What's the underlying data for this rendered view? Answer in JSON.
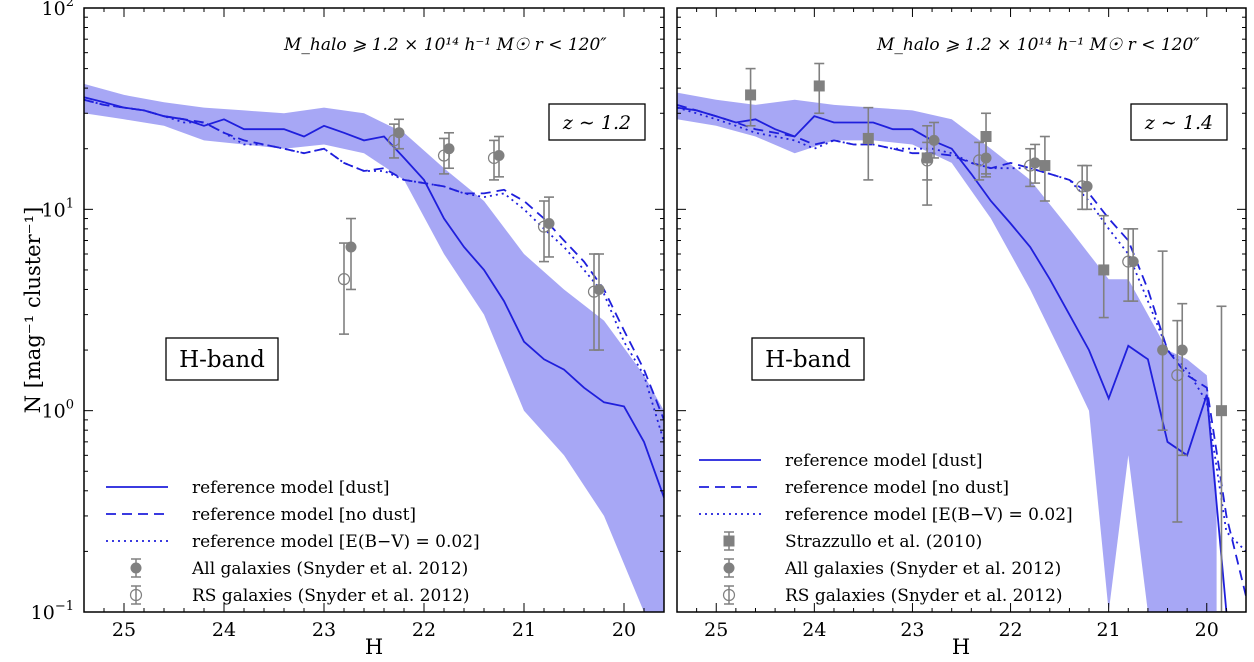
{
  "chart_data": [
    {
      "type": "line",
      "panel": "left",
      "xlabel": "H",
      "ylabel": "N [mag⁻¹ cluster⁻¹]",
      "xlim": [
        25.4,
        19.6
      ],
      "ylim": [
        0.1,
        100
      ],
      "yscale": "log",
      "x_ticks": [
        25,
        24,
        23,
        22,
        21,
        20
      ],
      "y_ticks": [
        {
          "value": 0.1,
          "base": "10",
          "exp": "−1"
        },
        {
          "value": 1,
          "base": "10",
          "exp": "0"
        },
        {
          "value": 10,
          "base": "10",
          "exp": "1"
        },
        {
          "value": 100,
          "base": "10",
          "exp": "2"
        }
      ],
      "annotation": "M_halo ⩾ 1.2 × 10¹⁴ h⁻¹ M☉     r < 120″",
      "redshift_label": "z ∼ 1.2",
      "band_label": "H-band",
      "legend_position": "lower-left",
      "legend": [
        {
          "label": "reference model [dust]",
          "style": "solid"
        },
        {
          "label": "reference model [no dust]",
          "style": "dashed"
        },
        {
          "label": "reference model [E(B−V) = 0.02]",
          "style": "dotted"
        },
        {
          "label": "All galaxies (Snyder et al. 2012)",
          "style": "filled-circle"
        },
        {
          "label": "RS galaxies (Snyder et al. 2012)",
          "style": "open-circle"
        }
      ],
      "series": [
        {
          "name": "reference model [dust]",
          "style": "solid",
          "x": [
            25.4,
            25.2,
            25,
            24.8,
            24.6,
            24.4,
            24.2,
            24,
            23.8,
            23.6,
            23.4,
            23.2,
            23,
            22.8,
            22.6,
            22.4,
            22.2,
            22,
            21.8,
            21.6,
            21.4,
            21.2,
            21,
            20.8,
            20.6,
            20.4,
            20.2,
            20,
            19.8,
            19.6
          ],
          "y": [
            36,
            34,
            32,
            31,
            29,
            28,
            26,
            28,
            25,
            25,
            25,
            23,
            26,
            24,
            22,
            23,
            18,
            14,
            9,
            6.5,
            5,
            3.5,
            2.2,
            1.8,
            1.6,
            1.3,
            1.1,
            1.05,
            0.7,
            0.37
          ]
        },
        {
          "name": "reference model [no dust]",
          "style": "dashed",
          "x": [
            25.4,
            25.2,
            25,
            24.8,
            24.6,
            24.4,
            24.2,
            24,
            23.8,
            23.6,
            23.4,
            23.2,
            23,
            22.8,
            22.6,
            22.4,
            22.2,
            22,
            21.8,
            21.6,
            21.4,
            21.2,
            21,
            20.8,
            20.6,
            20.4,
            20.2,
            20,
            19.8,
            19.6
          ],
          "y": [
            35,
            33,
            32,
            31,
            29,
            28,
            27,
            24,
            22,
            21,
            20,
            19,
            20,
            17,
            15.5,
            16,
            14,
            13.5,
            13,
            12,
            12,
            12.5,
            11,
            9,
            7,
            5.5,
            4,
            2.5,
            1.6,
            0.9
          ]
        },
        {
          "name": "reference model [E(B−V) = 0.02]",
          "style": "dotted",
          "x": [
            25.4,
            25.2,
            25,
            24.8,
            24.6,
            24.4,
            24.2,
            24,
            23.8,
            23.6,
            23.4,
            23.2,
            23,
            22.8,
            22.6,
            22.4,
            22.2,
            22,
            21.8,
            21.6,
            21.4,
            21.2,
            21,
            20.8,
            20.6,
            20.4,
            20.2,
            20,
            19.8,
            19.6
          ],
          "y": [
            35,
            33,
            32,
            31,
            29,
            27,
            27,
            24,
            21,
            21,
            20,
            19,
            20,
            17,
            15.5,
            15.5,
            14,
            13.5,
            13,
            12,
            11.5,
            12,
            10,
            8,
            6.5,
            5,
            3.8,
            2.2,
            1.5,
            0.7
          ]
        },
        {
          "name": "model band (dust)",
          "style": "band",
          "x": [
            25.4,
            25,
            24.6,
            24.2,
            23.8,
            23.4,
            23,
            22.6,
            22.2,
            21.8,
            21.4,
            21,
            20.6,
            20.2,
            19.8,
            19.6
          ],
          "y_low": [
            30,
            28,
            26,
            22,
            21,
            20,
            21,
            19,
            14,
            6,
            3,
            1,
            0.6,
            0.3,
            0.1,
            0.1
          ],
          "y_high": [
            42,
            37,
            34,
            32,
            31,
            30,
            32,
            30,
            24,
            16,
            11,
            6,
            4,
            2.8,
            1.5,
            1
          ]
        }
      ],
      "points": [
        {
          "name": "All galaxies (Snyder et al. 2012)",
          "marker": "filled-circle",
          "data": [
            {
              "x": 22.73,
              "y": 6.5,
              "lo": 4,
              "hi": 9
            },
            {
              "x": 22.25,
              "y": 24,
              "lo": 20,
              "hi": 28
            },
            {
              "x": 21.75,
              "y": 20,
              "lo": 16,
              "hi": 24
            },
            {
              "x": 21.25,
              "y": 18.5,
              "lo": 14.5,
              "hi": 23
            },
            {
              "x": 20.75,
              "y": 8.5,
              "lo": 5.8,
              "hi": 11.5
            },
            {
              "x": 20.25,
              "y": 4,
              "lo": 2,
              "hi": 6
            }
          ]
        },
        {
          "name": "RS galaxies (Snyder et al. 2012)",
          "marker": "open-circle",
          "data": [
            {
              "x": 22.8,
              "y": 4.5,
              "lo": 2.4,
              "hi": 6.8
            },
            {
              "x": 22.3,
              "y": 22,
              "lo": 18,
              "hi": 26.5
            },
            {
              "x": 21.8,
              "y": 18.5,
              "lo": 15,
              "hi": 22.5
            },
            {
              "x": 21.3,
              "y": 18,
              "lo": 14,
              "hi": 22
            },
            {
              "x": 20.8,
              "y": 8.2,
              "lo": 5.5,
              "hi": 11
            },
            {
              "x": 20.3,
              "y": 3.9,
              "lo": 2,
              "hi": 6
            }
          ]
        }
      ]
    },
    {
      "type": "line",
      "panel": "right",
      "xlabel": "H",
      "xlim": [
        25.4,
        19.6
      ],
      "ylim": [
        0.1,
        100
      ],
      "yscale": "log",
      "x_ticks": [
        25,
        24,
        23,
        22,
        21,
        20
      ],
      "annotation": "M_halo ⩾ 1.2 × 10¹⁴ h⁻¹ M☉     r < 120″",
      "redshift_label": "z ∼ 1.4",
      "band_label": "H-band",
      "legend_position": "lower-left",
      "legend": [
        {
          "label": "reference model [dust]",
          "style": "solid"
        },
        {
          "label": "reference model [no dust]",
          "style": "dashed"
        },
        {
          "label": "reference model [E(B−V) = 0.02]",
          "style": "dotted"
        },
        {
          "label": "Strazzullo et al. (2010)",
          "style": "filled-square"
        },
        {
          "label": "All galaxies (Snyder et al. 2012)",
          "style": "filled-circle"
        },
        {
          "label": "RS galaxies (Snyder et al. 2012)",
          "style": "open-circle"
        }
      ],
      "series": [
        {
          "name": "reference model [dust]",
          "style": "solid",
          "x": [
            25.4,
            25.2,
            25,
            24.8,
            24.6,
            24.4,
            24.2,
            24,
            23.8,
            23.6,
            23.4,
            23.2,
            23,
            22.8,
            22.6,
            22.4,
            22.2,
            22,
            21.8,
            21.6,
            21.4,
            21.2,
            21,
            20.8,
            20.6,
            20.4,
            20.2,
            20,
            19.8
          ],
          "y": [
            32,
            31,
            29,
            27,
            28,
            25,
            23,
            29,
            27,
            27,
            27,
            25,
            25,
            22,
            20,
            15,
            11,
            8.5,
            6.5,
            4.5,
            3,
            2,
            1.15,
            2.1,
            1.8,
            0.7,
            0.6,
            1.2,
            0.1
          ]
        },
        {
          "name": "reference model [no dust]",
          "style": "dashed",
          "x": [
            25.4,
            25.2,
            25,
            24.8,
            24.6,
            24.4,
            24.2,
            24,
            23.8,
            23.6,
            23.4,
            23.2,
            23,
            22.8,
            22.6,
            22.4,
            22.2,
            22,
            21.8,
            21.6,
            21.4,
            21.2,
            21,
            20.8,
            20.6,
            20.4,
            20.2,
            20,
            19.8,
            19.6
          ],
          "y": [
            33,
            31,
            29,
            27,
            25,
            24,
            23,
            21,
            22,
            21,
            21,
            20,
            19,
            19,
            18.5,
            17,
            16,
            17,
            16,
            15,
            14,
            12,
            9,
            7,
            4,
            2,
            1.5,
            1.3,
            0.3,
            0.12
          ]
        },
        {
          "name": "reference model [E(B−V) = 0.02]",
          "style": "dotted",
          "x": [
            25.4,
            25.2,
            25,
            24.8,
            24.6,
            24.4,
            24.2,
            24,
            23.8,
            23.6,
            23.4,
            23.2,
            23,
            22.8,
            22.6,
            22.4,
            22.2,
            22,
            21.8,
            21.6,
            21.4,
            21.2,
            21,
            20.8,
            20.6,
            20.4,
            20.2,
            20,
            19.8,
            19.6
          ],
          "y": [
            32,
            30,
            28,
            26,
            24,
            23,
            22,
            20,
            22,
            21,
            21,
            20,
            20,
            20,
            19,
            17,
            16,
            16,
            16,
            15,
            14,
            11,
            8,
            6,
            3.5,
            2,
            1.6,
            1.1,
            0.25,
            0.2
          ]
        },
        {
          "name": "model band (dust)",
          "style": "band",
          "x": [
            25.4,
            25,
            24.6,
            24.2,
            23.8,
            23.4,
            23,
            22.6,
            22.2,
            21.8,
            21.4,
            21.2,
            21,
            20.8,
            20.6,
            20.4,
            20.2,
            20,
            19.9
          ],
          "y_low": [
            28,
            26,
            23,
            19,
            22,
            22,
            21,
            17,
            9,
            4,
            1.6,
            1,
            0.1,
            0.6,
            0.1,
            0.1,
            0.1,
            0.1,
            0.1
          ],
          "y_high": [
            38,
            35,
            33,
            35,
            33,
            32,
            31,
            28,
            20,
            14,
            8,
            6,
            4.5,
            4.5,
            3,
            2,
            1.8,
            1.5,
            0.4
          ]
        }
      ],
      "points": [
        {
          "name": "Strazzullo et al. (2010)",
          "marker": "filled-square",
          "data": [
            {
              "x": 24.65,
              "y": 37,
              "lo": 26,
              "hi": 50
            },
            {
              "x": 23.95,
              "y": 41,
              "lo": 30,
              "hi": 53
            },
            {
              "x": 23.45,
              "y": 22.5,
              "lo": 14,
              "hi": 32
            },
            {
              "x": 22.85,
              "y": 18,
              "lo": 10.5,
              "hi": 26
            },
            {
              "x": 22.25,
              "y": 23,
              "lo": 15,
              "hi": 30
            },
            {
              "x": 21.65,
              "y": 16.5,
              "lo": 11,
              "hi": 23
            },
            {
              "x": 21.05,
              "y": 5,
              "lo": 2.9,
              "hi": 9.3
            },
            {
              "x": 19.85,
              "y": 1,
              "lo": 0.1,
              "hi": 3.3
            }
          ]
        },
        {
          "name": "All galaxies (Snyder et al. 2012)",
          "marker": "filled-circle",
          "data": [
            {
              "x": 22.78,
              "y": 22,
              "lo": 18,
              "hi": 27
            },
            {
              "x": 22.25,
              "y": 18,
              "lo": 14.5,
              "hi": 22
            },
            {
              "x": 21.75,
              "y": 17,
              "lo": 13.5,
              "hi": 21
            },
            {
              "x": 21.22,
              "y": 13,
              "lo": 10,
              "hi": 16.5
            },
            {
              "x": 20.75,
              "y": 5.5,
              "lo": 3.5,
              "hi": 8
            },
            {
              "x": 20.45,
              "y": 2,
              "lo": 0.8,
              "hi": 6.2
            },
            {
              "x": 20.25,
              "y": 2,
              "lo": 0.6,
              "hi": 3.4
            }
          ]
        },
        {
          "name": "RS galaxies (Snyder et al. 2012)",
          "marker": "open-circle",
          "data": [
            {
              "x": 22.85,
              "y": 17.5,
              "lo": 14,
              "hi": 21.5
            },
            {
              "x": 22.32,
              "y": 17.5,
              "lo": 14,
              "hi": 21.5
            },
            {
              "x": 21.8,
              "y": 16.5,
              "lo": 13,
              "hi": 20
            },
            {
              "x": 21.27,
              "y": 13,
              "lo": 10,
              "hi": 16.5
            },
            {
              "x": 20.8,
              "y": 5.5,
              "lo": 3.5,
              "hi": 8
            },
            {
              "x": 20.3,
              "y": 1.5,
              "lo": 0.28,
              "hi": 2.8
            }
          ]
        }
      ]
    }
  ]
}
